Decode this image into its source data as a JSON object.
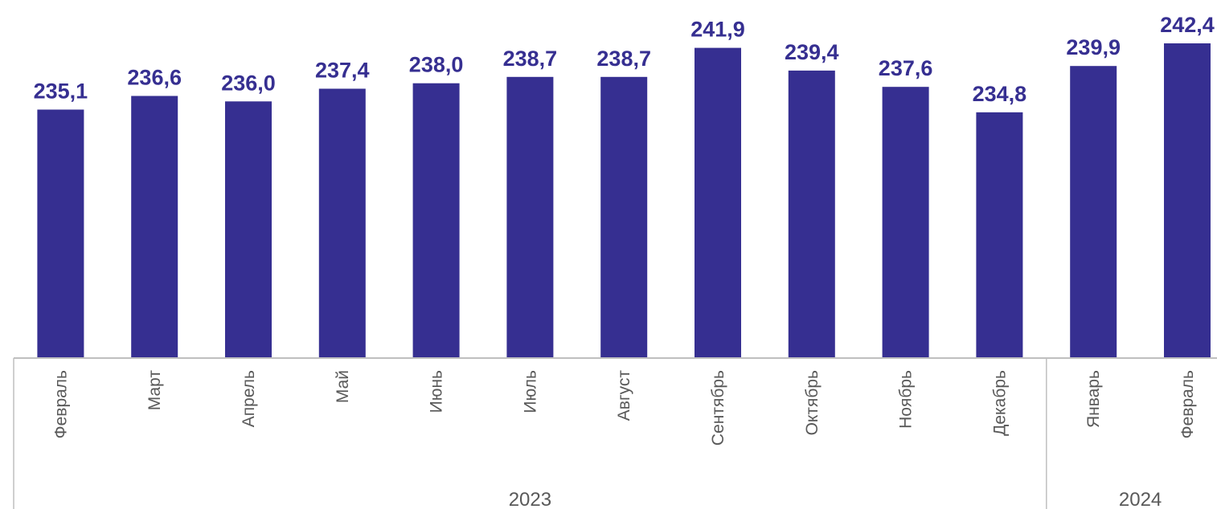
{
  "colors": {
    "bar": "#362f91",
    "value_text": "#362f91",
    "axis_text": "#595959",
    "axis_line": "#bfbfbf"
  },
  "chart_data": {
    "type": "bar",
    "categories": [
      "Февраль",
      "Март",
      "Апрель",
      "Май",
      "Июнь",
      "Июль",
      "Август",
      "Сентябрь",
      "Октябрь",
      "Ноябрь",
      "Декабрь",
      "Январь",
      "Февраль"
    ],
    "values": [
      235.1,
      236.6,
      236.0,
      237.4,
      238.0,
      238.7,
      238.7,
      241.9,
      239.4,
      237.6,
      234.8,
      239.9,
      242.4
    ],
    "value_labels": [
      "235,1",
      "236,6",
      "236,0",
      "237,4",
      "238,0",
      "238,7",
      "238,7",
      "241,9",
      "239,4",
      "237,6",
      "234,8",
      "239,9",
      "242,4"
    ],
    "groups": [
      {
        "label": "2023",
        "count": 11
      },
      {
        "label": "2024",
        "count": 2
      }
    ],
    "title": "",
    "xlabel": "",
    "ylabel": "",
    "ylim": [
      207.7,
      242.4
    ],
    "grid": false,
    "legend": "none",
    "y_axis_visible": false
  }
}
